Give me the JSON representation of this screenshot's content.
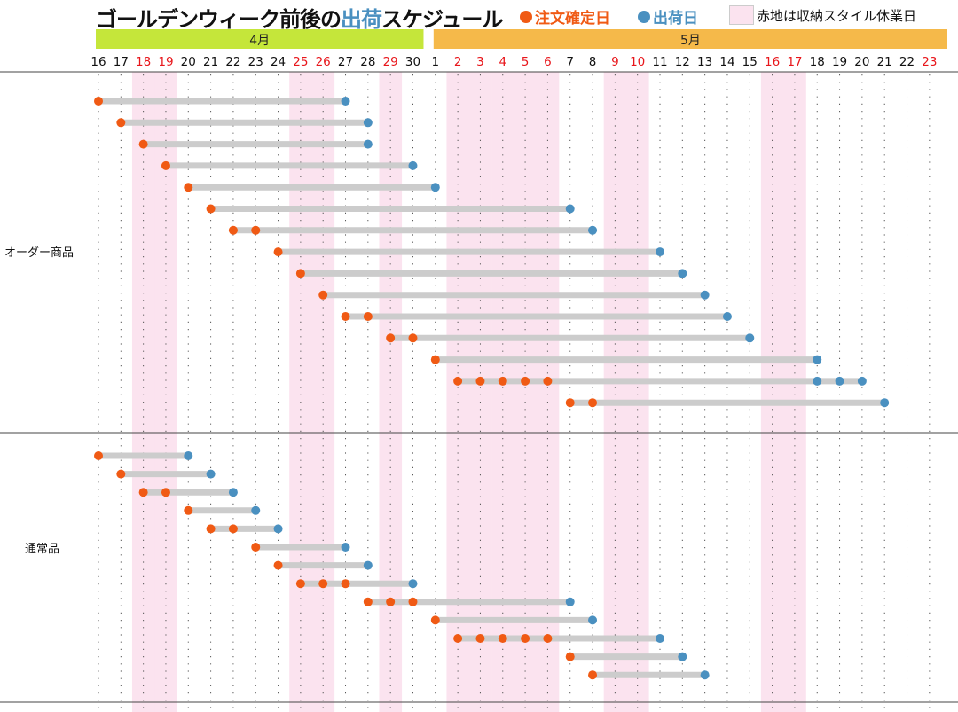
{
  "title": {
    "prefix": "ゴールデンウィーク前後の",
    "highlight": "出荷",
    "suffix": "スケジュール"
  },
  "legend": {
    "order_label": "注文確定日",
    "ship_label": "出荷日",
    "holiday_label": "赤地は収納スタイル休業日"
  },
  "colors": {
    "order": "#f05a14",
    "ship": "#4a90c0",
    "bar": "#cccccc",
    "holiday_band": "#fbe3ef",
    "holiday_text": "#e8161b",
    "april": "#c5e63a",
    "may": "#f5b94a"
  },
  "chart_data": {
    "type": "timeline",
    "months": [
      {
        "label": "4月",
        "from": "4/16",
        "to": "4/30"
      },
      {
        "label": "5月",
        "from": "5/1",
        "to": "5/23"
      }
    ],
    "days": [
      "4/16",
      "4/17",
      "4/18",
      "4/19",
      "4/20",
      "4/21",
      "4/22",
      "4/23",
      "4/24",
      "4/25",
      "4/26",
      "4/27",
      "4/28",
      "4/29",
      "4/30",
      "5/1",
      "5/2",
      "5/3",
      "5/4",
      "5/5",
      "5/6",
      "5/7",
      "5/8",
      "5/9",
      "5/10",
      "5/11",
      "5/12",
      "5/13",
      "5/14",
      "5/15",
      "5/16",
      "5/17",
      "5/18",
      "5/19",
      "5/20",
      "5/21",
      "5/22",
      "5/23"
    ],
    "red_days": [
      "4/18",
      "4/19",
      "4/25",
      "4/26",
      "4/29",
      "5/2",
      "5/3",
      "5/4",
      "5/5",
      "5/6",
      "5/9",
      "5/10",
      "5/16",
      "5/17",
      "5/23"
    ],
    "holiday_bands": [
      "4/18",
      "4/19",
      "4/25",
      "4/26",
      "4/29",
      "5/2",
      "5/3",
      "5/4",
      "5/5",
      "5/6",
      "5/9",
      "5/10",
      "5/16",
      "5/17"
    ],
    "sections": [
      {
        "label": "オーダー商品",
        "rows": [
          {
            "order": [
              "4/16"
            ],
            "ship": [
              "4/27"
            ]
          },
          {
            "order": [
              "4/17"
            ],
            "ship": [
              "4/28"
            ]
          },
          {
            "order": [
              "4/18"
            ],
            "ship": [
              "4/28"
            ]
          },
          {
            "order": [
              "4/19"
            ],
            "ship": [
              "4/30"
            ]
          },
          {
            "order": [
              "4/20"
            ],
            "ship": [
              "5/1"
            ]
          },
          {
            "order": [
              "4/21"
            ],
            "ship": [
              "5/7"
            ]
          },
          {
            "order": [
              "4/22",
              "4/23"
            ],
            "ship": [
              "5/8"
            ]
          },
          {
            "order": [
              "4/24"
            ],
            "ship": [
              "5/11"
            ]
          },
          {
            "order": [
              "4/25"
            ],
            "ship": [
              "5/12"
            ]
          },
          {
            "order": [
              "4/26"
            ],
            "ship": [
              "5/13"
            ]
          },
          {
            "order": [
              "4/27",
              "4/28"
            ],
            "ship": [
              "5/14"
            ]
          },
          {
            "order": [
              "4/29",
              "4/30"
            ],
            "ship": [
              "5/15"
            ]
          },
          {
            "order": [
              "5/1"
            ],
            "ship": [
              "5/18"
            ]
          },
          {
            "order": [
              "5/2",
              "5/3",
              "5/4",
              "5/5",
              "5/6"
            ],
            "ship": [
              "5/18",
              "5/19",
              "5/20"
            ]
          },
          {
            "order": [
              "5/7",
              "5/8"
            ],
            "ship": [
              "5/21"
            ]
          }
        ]
      },
      {
        "label": "通常品",
        "rows": [
          {
            "order": [
              "4/16"
            ],
            "ship": [
              "4/20"
            ]
          },
          {
            "order": [
              "4/17"
            ],
            "ship": [
              "4/21"
            ]
          },
          {
            "order": [
              "4/18",
              "4/19"
            ],
            "ship": [
              "4/22"
            ]
          },
          {
            "order": [
              "4/20"
            ],
            "ship": [
              "4/23"
            ]
          },
          {
            "order": [
              "4/21",
              "4/22"
            ],
            "ship": [
              "4/24"
            ]
          },
          {
            "order": [
              "4/23"
            ],
            "ship": [
              "4/27"
            ]
          },
          {
            "order": [
              "4/24"
            ],
            "ship": [
              "4/28"
            ]
          },
          {
            "order": [
              "4/25",
              "4/26",
              "4/27"
            ],
            "ship": [
              "4/30"
            ]
          },
          {
            "order": [
              "4/28",
              "4/29",
              "4/30"
            ],
            "ship": [
              "5/7"
            ]
          },
          {
            "order": [
              "5/1"
            ],
            "ship": [
              "5/8"
            ]
          },
          {
            "order": [
              "5/2",
              "5/3",
              "5/4",
              "5/5",
              "5/6"
            ],
            "ship": [
              "5/11"
            ]
          },
          {
            "order": [
              "5/7"
            ],
            "ship": [
              "5/12"
            ]
          },
          {
            "order": [
              "5/8"
            ],
            "ship": [
              "5/13"
            ]
          }
        ]
      }
    ]
  }
}
